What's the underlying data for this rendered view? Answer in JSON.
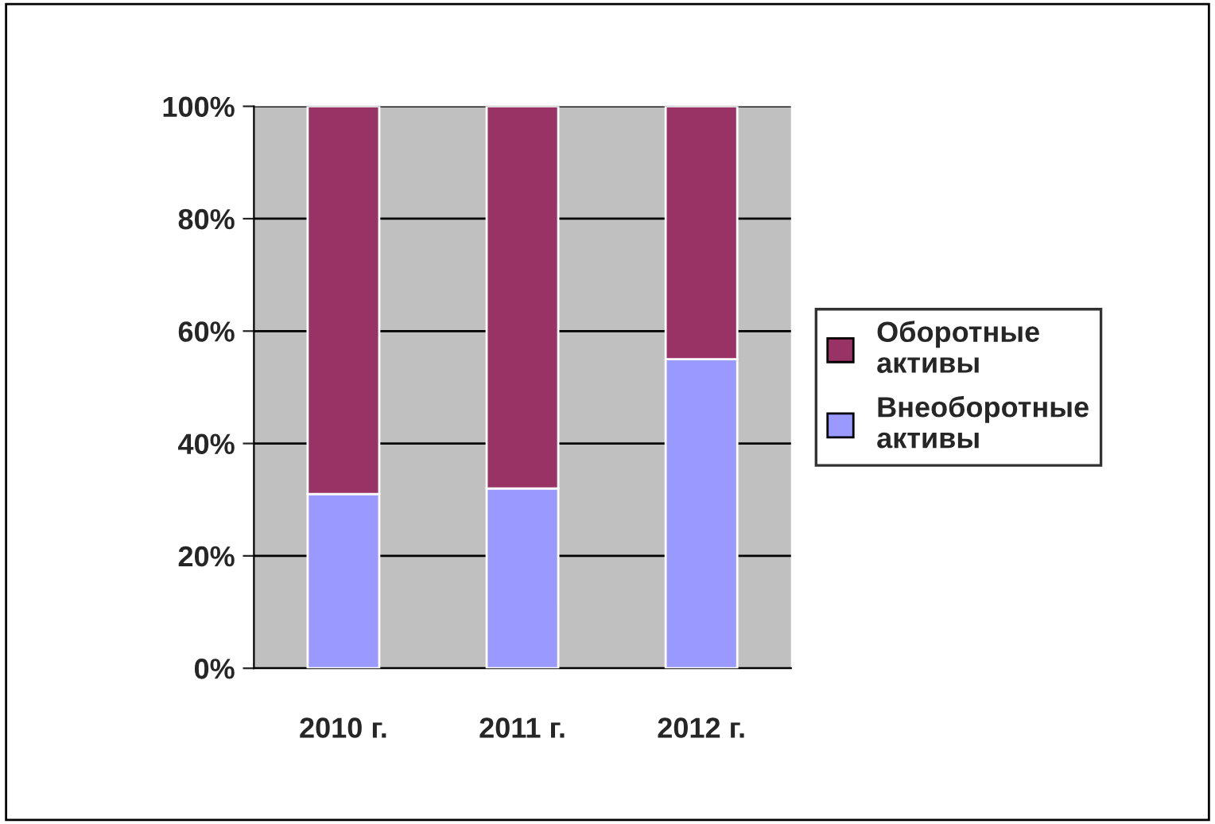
{
  "chart_data": {
    "type": "bar",
    "stacked": true,
    "categories": [
      "2010 г.",
      "2011 г.",
      "2012 г."
    ],
    "series": [
      {
        "name": "Внеоборотные\nактивы",
        "color": "#9999ff",
        "values": [
          31,
          32,
          55
        ]
      },
      {
        "name": "Оборотные\nактивы",
        "color": "#993366",
        "values": [
          69,
          68,
          45
        ]
      }
    ],
    "ylim": [
      0,
      100
    ],
    "yticks": [
      {
        "value": 0,
        "label": "0%"
      },
      {
        "value": 20,
        "label": "20%"
      },
      {
        "value": 40,
        "label": "40%"
      },
      {
        "value": 60,
        "label": "60%"
      },
      {
        "value": 80,
        "label": "80%"
      },
      {
        "value": 100,
        "label": "100%"
      }
    ],
    "grid": "y",
    "legend": "right"
  }
}
